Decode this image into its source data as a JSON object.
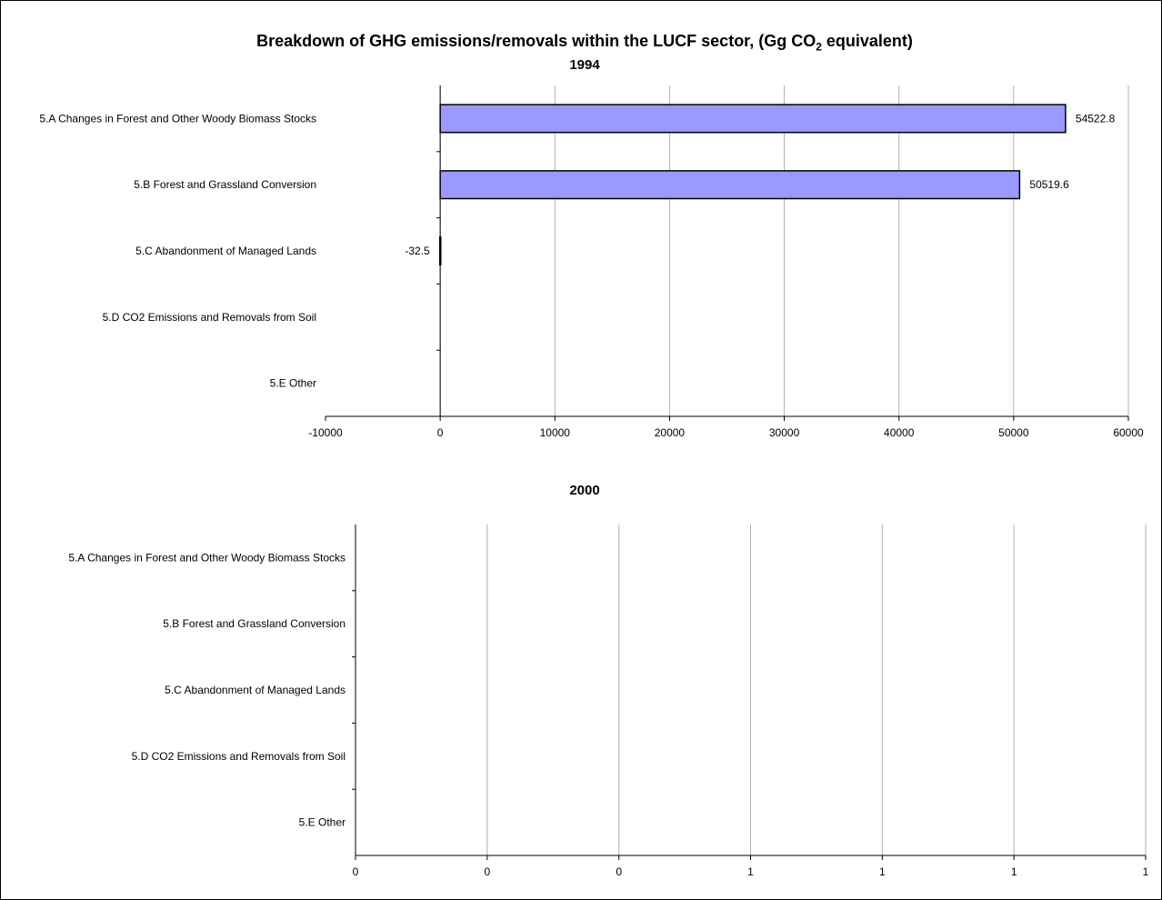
{
  "chart_data": [
    {
      "type": "bar",
      "orientation": "horizontal",
      "title": "Breakdown of GHG emissions/removals within the LUCF sector, (Gg CO",
      "title_sub": "2",
      "title_tail": " equivalent)",
      "subtitle": "1994",
      "categories": [
        "5.A Changes in Forest and Other Woody Biomass Stocks",
        "5.B Forest and Grassland Conversion",
        "5.C Abandonment of Managed Lands",
        "5.D CO2 Emissions and Removals from Soil",
        "5.E Other"
      ],
      "values": [
        54522.8,
        50519.6,
        -32.5,
        null,
        null
      ],
      "data_labels": [
        "54522.8",
        "50519.6",
        "-32.5",
        "",
        ""
      ],
      "xlim": [
        -10000,
        60000
      ],
      "xticks": [
        "-10000",
        "0",
        "10000",
        "20000",
        "30000",
        "40000",
        "50000",
        "60000"
      ],
      "grid": "vertical",
      "bar_color": "#9999ff"
    },
    {
      "type": "bar",
      "orientation": "horizontal",
      "subtitle": "2000",
      "categories": [
        "5.A Changes in Forest and Other Woody Biomass Stocks",
        "5.B Forest and Grassland Conversion",
        "5.C Abandonment of Managed Lands",
        "5.D CO2 Emissions and Removals from Soil",
        "5.E Other"
      ],
      "values": [
        null,
        null,
        null,
        null,
        null
      ],
      "xlim": [
        0,
        1
      ],
      "xticks": [
        "0",
        "0",
        "0",
        "1",
        "1",
        "1",
        "1"
      ],
      "grid": "vertical"
    }
  ]
}
